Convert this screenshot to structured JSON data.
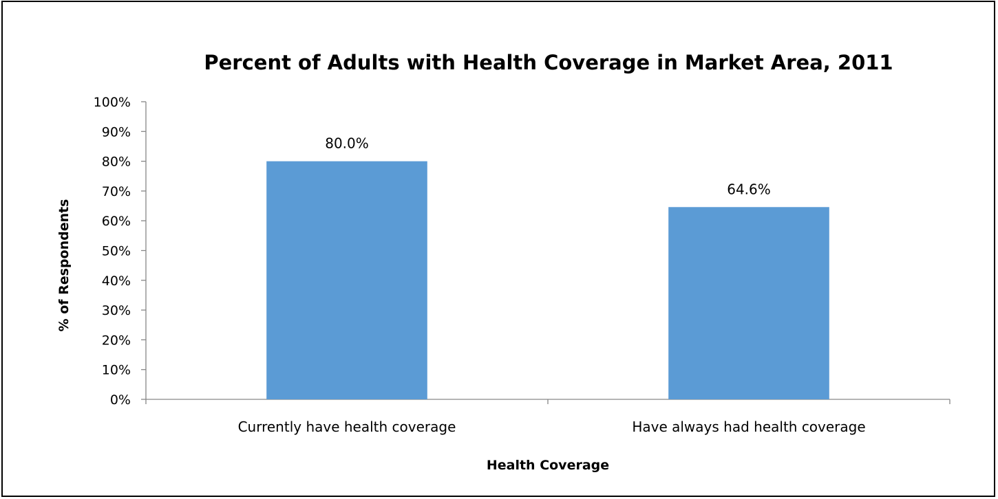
{
  "chart_data": {
    "type": "bar",
    "title": "Percent of Adults with Health Coverage in Market Area, 2011",
    "xlabel": "Health Coverage",
    "ylabel": "% of Respondents",
    "categories": [
      "Currently have health coverage",
      "Have always had health coverage"
    ],
    "values": [
      80.0,
      64.6
    ],
    "data_labels": [
      "80.0%",
      "64.6%"
    ],
    "ylim": [
      0,
      100
    ],
    "y_ticks": [
      0,
      10,
      20,
      30,
      40,
      50,
      60,
      70,
      80,
      90,
      100
    ],
    "y_tick_labels": [
      "0%",
      "10%",
      "20%",
      "30%",
      "40%",
      "50%",
      "60%",
      "70%",
      "80%",
      "90%",
      "100%"
    ],
    "grid": false,
    "legend": "none",
    "bar_color": "#5b9bd5"
  }
}
